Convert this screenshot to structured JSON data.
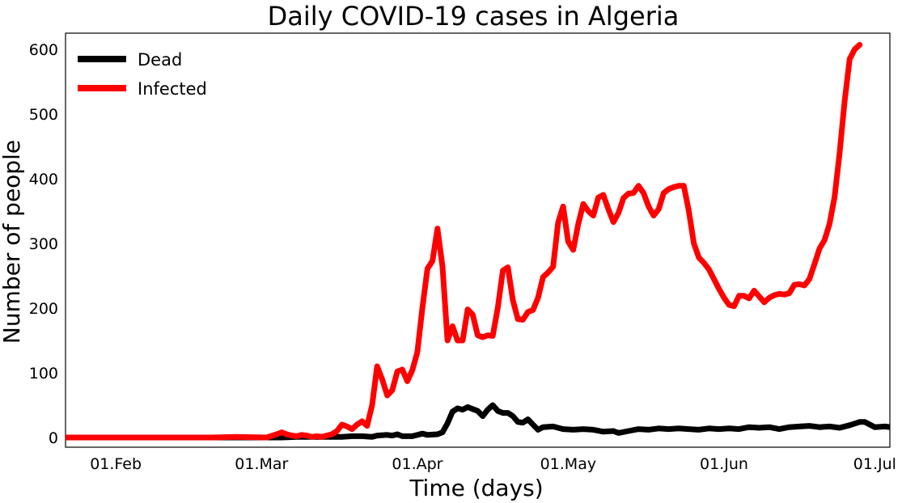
{
  "chart_data": {
    "type": "line",
    "title": "Daily COVID-19 cases in Algeria",
    "xlabel": "Time (days)",
    "ylabel": "Number of people",
    "x_ticks": [
      {
        "label": "01.Feb",
        "date": "2020-02-01"
      },
      {
        "label": "01.Mar",
        "date": "2020-03-01"
      },
      {
        "label": "01.Apr",
        "date": "2020-04-01"
      },
      {
        "label": "01.May",
        "date": "2020-05-01"
      },
      {
        "label": "01.Jun",
        "date": "2020-06-01"
      },
      {
        "label": "01.Jul",
        "date": "2020-07-01"
      }
    ],
    "xlim": [
      "2020-01-22",
      "2020-07-04"
    ],
    "ylim": [
      -15,
      625
    ],
    "y_ticks": [
      0,
      100,
      200,
      300,
      400,
      500,
      600
    ],
    "grid": false,
    "legend_position": "top-left",
    "series": [
      {
        "name": "Dead",
        "color": "#000000",
        "points": [
          [
            "2020-01-22",
            0
          ],
          [
            "2020-02-15",
            0
          ],
          [
            "2020-03-05",
            0
          ],
          [
            "2020-03-08",
            1
          ],
          [
            "2020-03-11",
            1
          ],
          [
            "2020-03-14",
            1
          ],
          [
            "2020-03-17",
            1
          ],
          [
            "2020-03-19",
            2
          ],
          [
            "2020-03-21",
            2
          ],
          [
            "2020-03-23",
            1
          ],
          [
            "2020-03-24",
            3
          ],
          [
            "2020-03-26",
            4
          ],
          [
            "2020-03-27",
            3
          ],
          [
            "2020-03-28",
            5
          ],
          [
            "2020-03-29",
            2
          ],
          [
            "2020-03-31",
            2
          ],
          [
            "2020-04-02",
            6
          ],
          [
            "2020-04-03",
            4
          ],
          [
            "2020-04-05",
            5
          ],
          [
            "2020-04-06",
            8
          ],
          [
            "2020-04-07",
            22
          ],
          [
            "2020-04-08",
            40
          ],
          [
            "2020-04-09",
            45
          ],
          [
            "2020-04-10",
            43
          ],
          [
            "2020-04-11",
            47
          ],
          [
            "2020-04-12",
            44
          ],
          [
            "2020-04-13",
            41
          ],
          [
            "2020-04-14",
            33
          ],
          [
            "2020-04-15",
            43
          ],
          [
            "2020-04-16",
            50
          ],
          [
            "2020-04-17",
            41
          ],
          [
            "2020-04-18",
            38
          ],
          [
            "2020-04-19",
            38
          ],
          [
            "2020-04-20",
            33
          ],
          [
            "2020-04-21",
            24
          ],
          [
            "2020-04-22",
            23
          ],
          [
            "2020-04-23",
            28
          ],
          [
            "2020-04-24",
            20
          ],
          [
            "2020-04-25",
            12
          ],
          [
            "2020-04-26",
            16
          ],
          [
            "2020-04-28",
            17
          ],
          [
            "2020-04-30",
            13
          ],
          [
            "2020-05-02",
            12
          ],
          [
            "2020-05-04",
            13
          ],
          [
            "2020-05-06",
            12
          ],
          [
            "2020-05-08",
            9
          ],
          [
            "2020-05-10",
            10
          ],
          [
            "2020-05-11",
            7
          ],
          [
            "2020-05-13",
            10
          ],
          [
            "2020-05-15",
            13
          ],
          [
            "2020-05-17",
            12
          ],
          [
            "2020-05-19",
            14
          ],
          [
            "2020-05-21",
            13
          ],
          [
            "2020-05-23",
            14
          ],
          [
            "2020-05-25",
            13
          ],
          [
            "2020-05-27",
            12
          ],
          [
            "2020-05-29",
            14
          ],
          [
            "2020-05-31",
            13
          ],
          [
            "2020-06-02",
            14
          ],
          [
            "2020-06-04",
            13
          ],
          [
            "2020-06-06",
            16
          ],
          [
            "2020-06-08",
            15
          ],
          [
            "2020-06-10",
            16
          ],
          [
            "2020-06-12",
            13
          ],
          [
            "2020-06-14",
            16
          ],
          [
            "2020-06-16",
            17
          ],
          [
            "2020-06-18",
            18
          ],
          [
            "2020-06-20",
            16
          ],
          [
            "2020-06-22",
            17
          ],
          [
            "2020-06-24",
            15
          ],
          [
            "2020-06-26",
            19
          ],
          [
            "2020-06-28",
            24
          ],
          [
            "2020-06-29",
            24
          ],
          [
            "2020-07-01",
            16
          ],
          [
            "2020-07-03",
            17
          ],
          [
            "2020-07-05",
            15
          ],
          [
            "2020-07-07",
            12
          ],
          [
            "2020-07-08",
            14
          ]
        ]
      },
      {
        "name": "Infected",
        "color": "#ff0000",
        "points": [
          [
            "2020-01-22",
            0
          ],
          [
            "2020-02-20",
            0
          ],
          [
            "2020-02-25",
            1
          ],
          [
            "2020-03-02",
            0
          ],
          [
            "2020-03-04",
            5
          ],
          [
            "2020-03-05",
            8
          ],
          [
            "2020-03-06",
            5
          ],
          [
            "2020-03-07",
            3
          ],
          [
            "2020-03-08",
            2
          ],
          [
            "2020-03-09",
            4
          ],
          [
            "2020-03-10",
            3
          ],
          [
            "2020-03-11",
            1
          ],
          [
            "2020-03-12",
            2
          ],
          [
            "2020-03-13",
            1
          ],
          [
            "2020-03-15",
            5
          ],
          [
            "2020-03-16",
            10
          ],
          [
            "2020-03-17",
            20
          ],
          [
            "2020-03-18",
            17
          ],
          [
            "2020-03-19",
            13
          ],
          [
            "2020-03-20",
            20
          ],
          [
            "2020-03-21",
            25
          ],
          [
            "2020-03-22",
            18
          ],
          [
            "2020-03-23",
            50
          ],
          [
            "2020-03-24",
            110
          ],
          [
            "2020-03-25",
            90
          ],
          [
            "2020-03-26",
            65
          ],
          [
            "2020-03-27",
            73
          ],
          [
            "2020-03-28",
            102
          ],
          [
            "2020-03-29",
            105
          ],
          [
            "2020-03-30",
            87
          ],
          [
            "2020-03-31",
            104
          ],
          [
            "2020-04-01",
            132
          ],
          [
            "2020-04-02",
            201
          ],
          [
            "2020-04-03",
            261
          ],
          [
            "2020-04-04",
            273
          ],
          [
            "2020-04-05",
            323
          ],
          [
            "2020-04-06",
            264
          ],
          [
            "2020-04-07",
            150
          ],
          [
            "2020-04-08",
            172
          ],
          [
            "2020-04-09",
            150
          ],
          [
            "2020-04-10",
            150
          ],
          [
            "2020-04-11",
            198
          ],
          [
            "2020-04-12",
            190
          ],
          [
            "2020-04-13",
            158
          ],
          [
            "2020-04-14",
            155
          ],
          [
            "2020-04-15",
            158
          ],
          [
            "2020-04-16",
            157
          ],
          [
            "2020-04-17",
            201
          ],
          [
            "2020-04-18",
            258
          ],
          [
            "2020-04-19",
            263
          ],
          [
            "2020-04-20",
            212
          ],
          [
            "2020-04-21",
            183
          ],
          [
            "2020-04-22",
            182
          ],
          [
            "2020-04-23",
            194
          ],
          [
            "2020-04-24",
            197
          ],
          [
            "2020-04-25",
            216
          ],
          [
            "2020-04-26",
            248
          ],
          [
            "2020-04-27",
            255
          ],
          [
            "2020-04-28",
            264
          ],
          [
            "2020-04-29",
            332
          ],
          [
            "2020-04-30",
            357
          ],
          [
            "2020-05-01",
            303
          ],
          [
            "2020-05-02",
            290
          ],
          [
            "2020-05-03",
            330
          ],
          [
            "2020-05-04",
            361
          ],
          [
            "2020-05-05",
            350
          ],
          [
            "2020-05-06",
            343
          ],
          [
            "2020-05-07",
            371
          ],
          [
            "2020-05-08",
            375
          ],
          [
            "2020-05-09",
            353
          ],
          [
            "2020-05-10",
            333
          ],
          [
            "2020-05-11",
            347
          ],
          [
            "2020-05-12",
            370
          ],
          [
            "2020-05-13",
            377
          ],
          [
            "2020-05-14",
            378
          ],
          [
            "2020-05-15",
            389
          ],
          [
            "2020-05-16",
            378
          ],
          [
            "2020-05-17",
            357
          ],
          [
            "2020-05-18",
            343
          ],
          [
            "2020-05-19",
            353
          ],
          [
            "2020-05-20",
            378
          ],
          [
            "2020-05-21",
            384
          ],
          [
            "2020-05-22",
            387
          ],
          [
            "2020-05-23",
            389
          ],
          [
            "2020-05-24",
            389
          ],
          [
            "2020-05-25",
            350
          ],
          [
            "2020-05-26",
            300
          ],
          [
            "2020-05-27",
            278
          ],
          [
            "2020-05-28",
            270
          ],
          [
            "2020-05-29",
            260
          ],
          [
            "2020-05-30",
            245
          ],
          [
            "2020-05-31",
            230
          ],
          [
            "2020-06-01",
            216
          ],
          [
            "2020-06-02",
            205
          ],
          [
            "2020-06-03",
            203
          ],
          [
            "2020-06-04",
            219
          ],
          [
            "2020-06-05",
            219
          ],
          [
            "2020-06-06",
            215
          ],
          [
            "2020-06-07",
            227
          ],
          [
            "2020-06-08",
            218
          ],
          [
            "2020-06-09",
            209
          ],
          [
            "2020-06-10",
            216
          ],
          [
            "2020-06-11",
            220
          ],
          [
            "2020-06-12",
            222
          ],
          [
            "2020-06-13",
            221
          ],
          [
            "2020-06-14",
            223
          ],
          [
            "2020-06-15",
            236
          ],
          [
            "2020-06-16",
            237
          ],
          [
            "2020-06-17",
            235
          ],
          [
            "2020-06-18",
            245
          ],
          [
            "2020-06-19",
            268
          ],
          [
            "2020-06-20",
            292
          ],
          [
            "2020-06-21",
            305
          ],
          [
            "2020-06-22",
            330
          ],
          [
            "2020-06-23",
            372
          ],
          [
            "2020-06-24",
            440
          ],
          [
            "2020-06-25",
            520
          ],
          [
            "2020-06-26",
            585
          ],
          [
            "2020-06-27",
            600
          ],
          [
            "2020-06-28",
            607
          ]
        ]
      }
    ]
  }
}
